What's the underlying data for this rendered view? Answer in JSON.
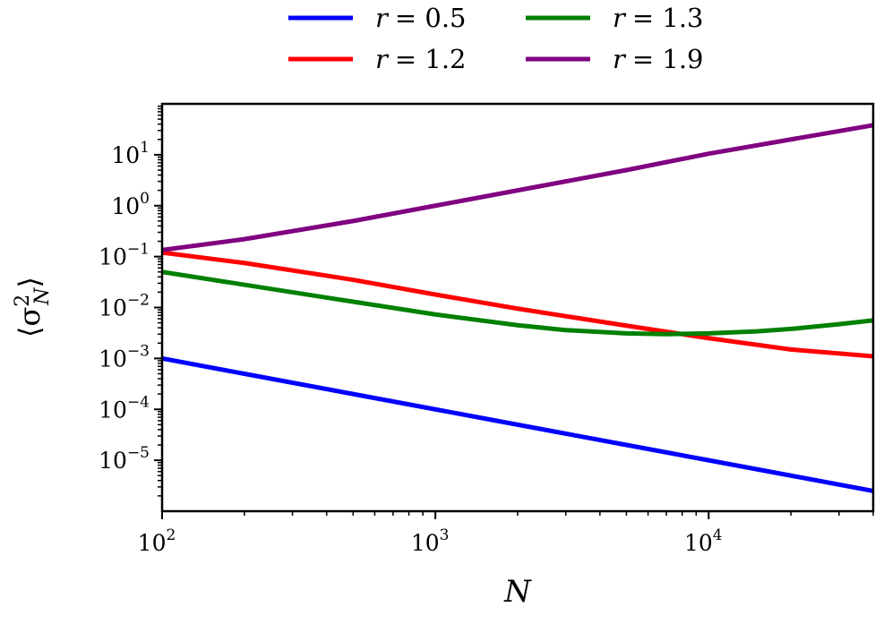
{
  "chart_data": {
    "type": "line",
    "xlabel": "N",
    "ylabel": "⟨σ²_N⟩",
    "xscale": "log",
    "yscale": "log",
    "xlim": [
      100,
      40000
    ],
    "ylim": [
      1e-06,
      100
    ],
    "grid": false,
    "legend_position": "top",
    "x_ticks": [
      100,
      1000,
      10000
    ],
    "y_ticks": [
      1e-05,
      0.0001,
      0.001,
      0.01,
      0.1,
      1,
      10
    ],
    "x_tick_labels": [
      {
        "base": "10",
        "exp": "2"
      },
      {
        "base": "10",
        "exp": "3"
      },
      {
        "base": "10",
        "exp": "4"
      }
    ],
    "y_tick_labels": [
      {
        "base": "10",
        "exp": "−5"
      },
      {
        "base": "10",
        "exp": "−4"
      },
      {
        "base": "10",
        "exp": "−3"
      },
      {
        "base": "10",
        "exp": "−2"
      },
      {
        "base": "10",
        "exp": "−1"
      },
      {
        "base": "10",
        "exp": "0"
      },
      {
        "base": "10",
        "exp": "1"
      }
    ],
    "series": [
      {
        "name": "r = 0.5",
        "legend_var": "r",
        "legend_val": "= 0.5",
        "color": "#0000ff",
        "x": [
          100,
          200,
          500,
          1000,
          2000,
          5000,
          10000,
          20000,
          40000
        ],
        "y": [
          0.001,
          0.0005,
          0.0002,
          0.0001,
          5e-05,
          2e-05,
          1e-05,
          5e-06,
          2.5e-06
        ]
      },
      {
        "name": "r = 1.2",
        "legend_var": "r",
        "legend_val": "= 1.2",
        "color": "#ff0000",
        "x": [
          100,
          200,
          500,
          1000,
          2000,
          5000,
          10000,
          20000,
          40000
        ],
        "y": [
          0.12,
          0.075,
          0.035,
          0.018,
          0.0095,
          0.0044,
          0.0025,
          0.0015,
          0.0011
        ]
      },
      {
        "name": "r = 1.3",
        "legend_var": "r",
        "legend_val": "= 1.3",
        "color": "#008000",
        "x": [
          100,
          200,
          500,
          1000,
          2000,
          3000,
          5000,
          7000,
          10000,
          15000,
          20000,
          30000,
          40000
        ],
        "y": [
          0.05,
          0.028,
          0.013,
          0.0073,
          0.0045,
          0.0036,
          0.0031,
          0.003,
          0.0031,
          0.0034,
          0.0038,
          0.0047,
          0.0056
        ]
      },
      {
        "name": "r = 1.9",
        "legend_var": "r",
        "legend_val": "= 1.9",
        "color": "#800080",
        "x": [
          100,
          200,
          500,
          1000,
          2000,
          5000,
          10000,
          20000,
          40000
        ],
        "y": [
          0.135,
          0.22,
          0.5,
          1.0,
          2.0,
          5.0,
          10.5,
          20,
          38
        ]
      }
    ]
  }
}
